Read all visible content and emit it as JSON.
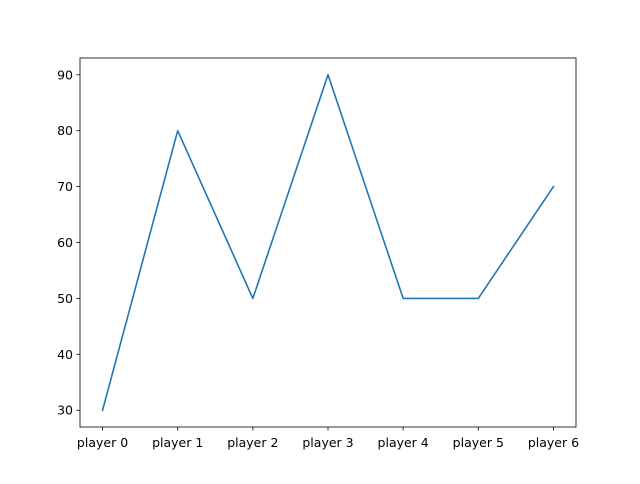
{
  "chart_data": {
    "type": "line",
    "title": "",
    "xlabel": "",
    "ylabel": "",
    "categories": [
      "player 0",
      "player 1",
      "player 2",
      "player 3",
      "player 4",
      "player 5",
      "player 6"
    ],
    "series": [
      {
        "values": [
          30,
          80,
          50,
          90,
          50,
          50,
          70
        ],
        "color": "#1f77b4"
      }
    ],
    "ylim": [
      27,
      93
    ],
    "yticks": [
      30,
      40,
      50,
      60,
      70,
      80,
      90
    ],
    "grid": false,
    "legend": "none"
  }
}
